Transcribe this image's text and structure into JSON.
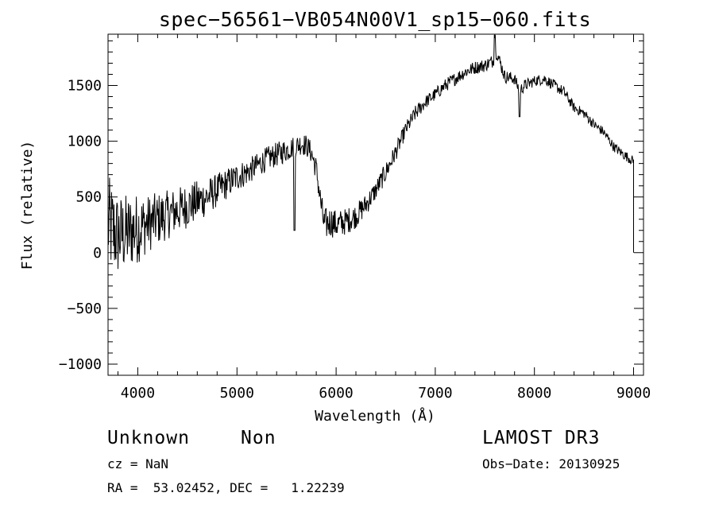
{
  "chart_data": {
    "type": "line",
    "title": "spec−56561−VB054N00V1_sp15−060.fits",
    "xlabel": "Wavelength (Å)",
    "ylabel": "Flux (relative)",
    "xlim": [
      3700,
      9100
    ],
    "ylim": [
      -1100,
      1960
    ],
    "xticks": [
      4000,
      5000,
      6000,
      7000,
      8000,
      9000
    ],
    "yticks": [
      -1000,
      -500,
      0,
      500,
      1000,
      1500
    ],
    "ytick_labels": [
      "−1000",
      "−500",
      "0",
      "500",
      "1000",
      "1500"
    ],
    "series": [
      {
        "name": "flux",
        "x": [
          3700,
          3750,
          3800,
          3900,
          4000,
          4100,
          4200,
          4300,
          4400,
          4500,
          4600,
          4700,
          4800,
          4900,
          5000,
          5100,
          5200,
          5300,
          5400,
          5500,
          5550,
          5600,
          5650,
          5700,
          5750,
          5800,
          5850,
          5880,
          5950,
          6000,
          6100,
          6200,
          6300,
          6400,
          6500,
          6600,
          6700,
          6800,
          6900,
          7000,
          7100,
          7200,
          7300,
          7400,
          7500,
          7580,
          7620,
          7700,
          7800,
          7850,
          7900,
          8000,
          8100,
          8200,
          8300,
          8400,
          8500,
          8600,
          8700,
          8800,
          8900,
          9000
        ],
        "values": [
          250,
          200,
          150,
          180,
          220,
          260,
          300,
          340,
          380,
          420,
          460,
          500,
          560,
          620,
          680,
          720,
          780,
          840,
          880,
          920,
          940,
          960,
          980,
          960,
          900,
          750,
          420,
          250,
          280,
          250,
          280,
          330,
          430,
          560,
          720,
          900,
          1100,
          1250,
          1350,
          1420,
          1500,
          1560,
          1620,
          1660,
          1680,
          1720,
          1800,
          1580,
          1560,
          1450,
          1500,
          1540,
          1560,
          1500,
          1440,
          1300,
          1250,
          1150,
          1080,
          950,
          880,
          820
        ],
        "noise_amplitude": [
          450,
          420,
          380,
          350,
          320,
          260,
          240,
          220,
          210,
          200,
          190,
          170,
          150,
          140,
          130,
          120,
          110,
          110,
          110,
          110,
          100,
          100,
          100,
          100,
          100,
          110,
          130,
          150,
          140,
          130,
          120,
          110,
          100,
          90,
          90,
          80,
          70,
          70,
          60,
          60,
          60,
          60,
          60,
          60,
          60,
          60,
          60,
          60,
          55,
          55,
          55,
          50,
          50,
          50,
          50,
          45,
          45,
          45,
          45,
          45,
          45,
          45
        ],
        "features": [
          {
            "x": 5580,
            "y": 200,
            "kind": "absorption"
          },
          {
            "x": 7600,
            "y": 1950,
            "kind": "peak"
          },
          {
            "x": 7850,
            "y": 1220,
            "kind": "absorption"
          }
        ]
      }
    ]
  },
  "info": {
    "class_label": "Unknown",
    "subclass_label": "Non",
    "survey": "LAMOST DR3",
    "redshift": "cz = NaN",
    "obs_date": "Obs−Date: 20130925",
    "coords": "RA =  53.02452, DEC =   1.22239"
  }
}
